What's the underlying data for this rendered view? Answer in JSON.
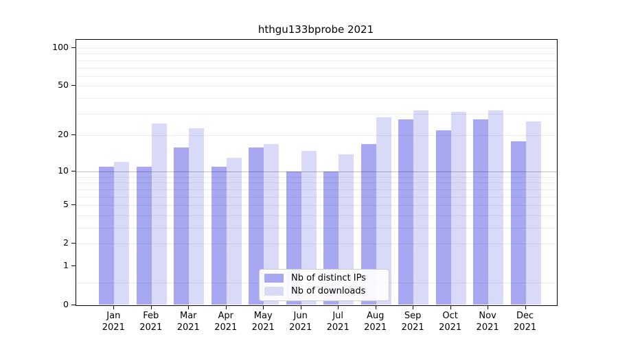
{
  "title": "hthgu133bprobe 2021",
  "colors": {
    "ips_bar": "#a7a7f2",
    "downloads_bar": "#d9d9f8",
    "grid_minor": "rgba(0,0,0,0.07)",
    "grid_ten": "rgba(0,0,0,0.25)",
    "axis": "#000000",
    "legend_border": "#cccccc"
  },
  "legend": {
    "items": [
      {
        "label": "Nb of distinct IPs",
        "color_key": "ips_bar"
      },
      {
        "label": "Nb of downloads",
        "color_key": "downloads_bar"
      }
    ]
  },
  "chart_data": {
    "type": "bar",
    "title": "hthgu133bprobe 2021",
    "categories": [
      "Jan 2021",
      "Feb 2021",
      "Mar 2021",
      "Apr 2021",
      "May 2021",
      "Jun 2021",
      "Jul 2021",
      "Aug 2021",
      "Sep 2021",
      "Oct 2021",
      "Nov 2021",
      "Dec 2021"
    ],
    "series": [
      {
        "name": "Nb of distinct IPs",
        "values": [
          11,
          11,
          16,
          11,
          16,
          10,
          10,
          17,
          27,
          22,
          27,
          18
        ]
      },
      {
        "name": "Nb of downloads",
        "values": [
          12,
          25,
          23,
          13,
          17,
          15,
          14,
          28,
          32,
          31,
          32,
          26
        ]
      }
    ],
    "xlabel": "",
    "ylabel": "",
    "yscale": "log10(value+1)",
    "ylim": [
      0,
      100
    ],
    "yticks": [
      0,
      1,
      2,
      5,
      10,
      20,
      50,
      100
    ],
    "grid_minor_values": [
      0.5,
      2,
      3,
      4,
      5,
      6,
      7,
      8,
      9,
      20,
      30,
      40,
      50,
      60,
      70,
      80,
      90,
      100
    ],
    "grid_emphasized_value": 10,
    "grid": true,
    "legend_position": "lower center"
  }
}
